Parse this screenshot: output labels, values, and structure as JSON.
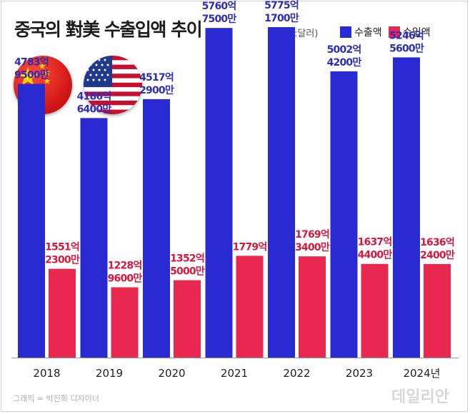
{
  "header": {
    "title": "중국의 對美 수출입액 추이",
    "unit": "(단위:달러)"
  },
  "legend": {
    "export_label": "수출액",
    "import_label": "수입액"
  },
  "flags": {
    "china": "china-flag-icon",
    "usa": "usa-flag-icon"
  },
  "colors": {
    "export": "#2a2ad2",
    "import": "#e8284e",
    "export_text": "#2d2db8",
    "import_text": "#d8183c"
  },
  "chart_data": {
    "type": "bar",
    "categories": [
      "2018",
      "2019",
      "2020",
      "2021",
      "2022",
      "2023",
      "2024년"
    ],
    "series": [
      {
        "name": "수출액",
        "values": [
          478395000000,
          418664000000,
          451729000000,
          576075000000,
          577517000000,
          500242000000,
          524656000000
        ],
        "labels": [
          [
            "4783억",
            "9500만"
          ],
          [
            "4186억",
            "6400만"
          ],
          [
            "4517억",
            "2900만"
          ],
          [
            "5760억",
            "7500만"
          ],
          [
            "5775억",
            "1700만"
          ],
          [
            "5002억",
            "4200만"
          ],
          [
            "5246억",
            "5600만"
          ]
        ]
      },
      {
        "name": "수입액",
        "values": [
          155123000000,
          122896000000,
          135250000000,
          177900000000,
          176934000000,
          163744000000,
          163624000000
        ],
        "labels": [
          [
            "1551억",
            "2300만"
          ],
          [
            "1228억",
            "9600만"
          ],
          [
            "1352억",
            "5000만"
          ],
          [
            "1779억"
          ],
          [
            "1769억",
            "3400만"
          ],
          [
            "1637억",
            "4400만"
          ],
          [
            "1636억",
            "2400만"
          ]
        ]
      }
    ],
    "ylim": [
      0,
      600000000000
    ],
    "grid": false
  },
  "footer": {
    "credit": "그래픽 = 박진희 디자이너",
    "watermark": "데일리안"
  }
}
